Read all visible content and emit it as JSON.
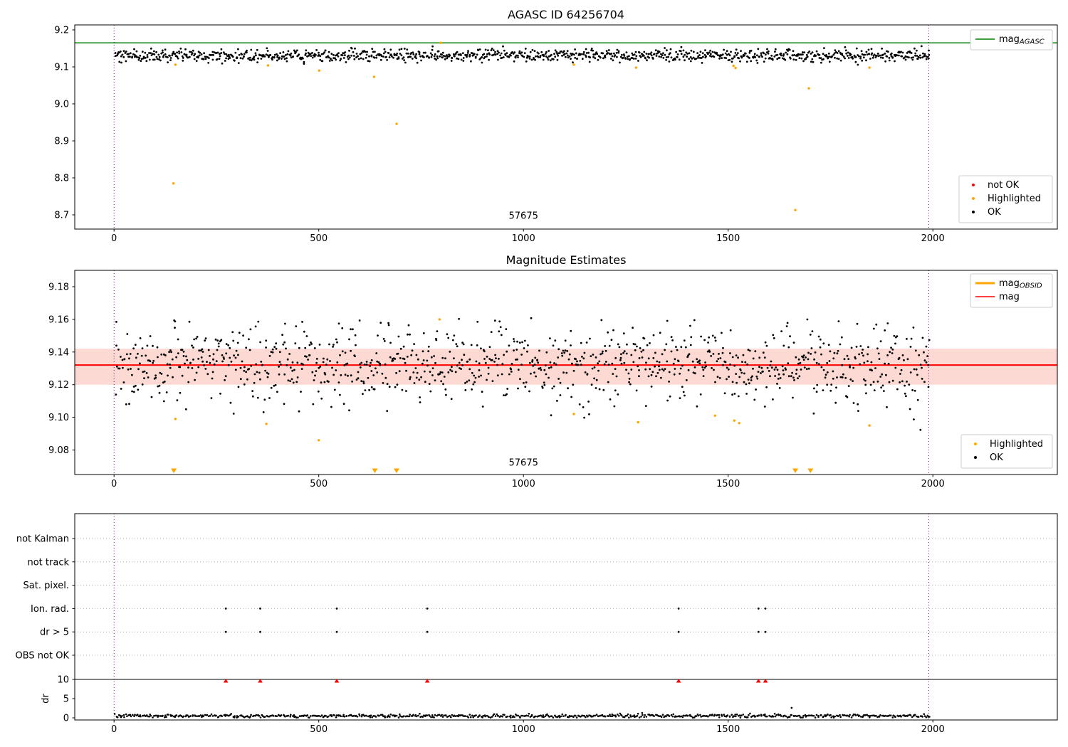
{
  "figure": {
    "background": "#ffffff",
    "colors": {
      "ok": "#000000",
      "not_ok": "#ff0000",
      "highlighted": "#ffa500",
      "agasc_line": "#008000",
      "mag_line": "#ff0000",
      "obsid_line": "#ffa500",
      "band_fill": "#fa8072",
      "vline": "#800080",
      "grid": "#b0b0b0"
    }
  },
  "chart_data": [
    {
      "type": "scatter",
      "title": "AGASC ID 64256704",
      "xlim": [
        -96,
        2304
      ],
      "ylim": [
        8.6615,
        9.2135
      ],
      "xticks": [
        0,
        500,
        1000,
        1500,
        2000
      ],
      "yticks": [
        "9.2",
        "9.1",
        "9.0",
        "8.9",
        "8.8",
        "8.7"
      ],
      "ytick_values": [
        9.2,
        9.1,
        9.0,
        8.9,
        8.8,
        8.7
      ],
      "hline": {
        "value": 9.165,
        "color": "#008000",
        "label": "mag",
        "label_sub": "AGASC"
      },
      "vlines": [
        0,
        1990
      ],
      "annotation": {
        "text": "57675",
        "x": 1000,
        "y": 8.689
      },
      "line_legend": [
        {
          "label": "mag",
          "sub": "AGASC",
          "color": "#008000",
          "type": "line",
          "lw": 1.5
        }
      ],
      "marker_legend": [
        {
          "label": "not OK",
          "color": "#ff0000",
          "type": "dot"
        },
        {
          "label": "Highlighted",
          "color": "#ffa500",
          "type": "dot"
        },
        {
          "label": "OK",
          "color": "#000000",
          "type": "dot"
        }
      ],
      "ok_series": {
        "n": 1100,
        "x_range": [
          3,
          1992
        ],
        "mean": 9.131,
        "sd": 0.0085,
        "dip_prob": 0.008,
        "dip_max": 0.012,
        "clip": [
          9.105,
          9.157
        ],
        "seed": 42
      },
      "highlighted_points": [
        [
          150,
          9.106
        ],
        [
          145,
          8.785
        ],
        [
          376,
          9.104
        ],
        [
          501,
          9.09
        ],
        [
          635,
          9.073
        ],
        [
          690,
          8.946
        ],
        [
          798,
          9.165
        ],
        [
          1123,
          9.106
        ],
        [
          1275,
          9.098
        ],
        [
          1513,
          9.103
        ],
        [
          1518,
          9.097
        ],
        [
          1664,
          8.713
        ],
        [
          1697,
          9.042
        ],
        [
          1845,
          9.098
        ]
      ]
    },
    {
      "type": "scatter",
      "title": "Magnitude Estimates",
      "xlim": [
        -96,
        2304
      ],
      "ylim": [
        9.065,
        9.19
      ],
      "xticks": [
        0,
        500,
        1000,
        1500,
        2000
      ],
      "yticks": [
        "9.18",
        "9.16",
        "9.14",
        "9.12",
        "9.10",
        "9.08"
      ],
      "ytick_values": [
        9.18,
        9.16,
        9.14,
        9.12,
        9.1,
        9.08
      ],
      "band": {
        "lo": 9.12,
        "hi": 9.142
      },
      "mag_line": {
        "value": 9.132,
        "color": "#ff0000"
      },
      "vlines": [
        0,
        1990
      ],
      "annotation": {
        "text": "57675",
        "x": 1000,
        "y": 9.0705
      },
      "line_legend": [
        {
          "label": "mag",
          "sub": "OBSID",
          "color": "#ffa500",
          "type": "line",
          "lw": 3
        },
        {
          "label": "mag",
          "color": "#ff0000",
          "type": "line",
          "lw": 1.5
        }
      ],
      "marker_legend": [
        {
          "label": "Highlighted",
          "color": "#ffa500",
          "type": "dot"
        },
        {
          "label": "OK",
          "color": "#000000",
          "type": "dot"
        }
      ],
      "ok_series": {
        "n": 1100,
        "x_range": [
          3,
          1992
        ],
        "mean": 9.133,
        "sd": 0.011,
        "dip_prob": 0.06,
        "dip_max": 0.027,
        "clip": [
          9.092,
          9.161
        ],
        "seed": 43
      },
      "highlighted_points": [
        [
          150,
          9.099
        ],
        [
          372,
          9.096
        ],
        [
          500,
          9.086
        ],
        [
          795,
          9.16
        ],
        [
          1123,
          9.102
        ],
        [
          1280,
          9.097
        ],
        [
          1468,
          9.101
        ],
        [
          1515,
          9.098
        ],
        [
          1527,
          9.0965
        ],
        [
          1845,
          9.095
        ]
      ],
      "clipped_triangles_x": [
        146,
        637,
        690,
        1664,
        1701
      ]
    },
    {
      "type": "flags",
      "title": "",
      "xlim": [
        -96,
        2304
      ],
      "xticks": [
        0,
        500,
        1000,
        1500,
        2000
      ],
      "vlines": [
        0,
        1990
      ],
      "flag_labels": [
        "not Kalman",
        "not track",
        "Sat. pixel.",
        "Ion. rad.",
        "dr > 5",
        "OBS not OK"
      ],
      "flag_event_rows": [
        "Ion. rad.",
        "dr > 5"
      ],
      "flag_event_x": [
        273,
        357,
        544,
        765,
        1379,
        1574,
        1591
      ],
      "red_marker_x": [
        273,
        357,
        544,
        765,
        1379,
        1574,
        1591
      ],
      "dr_axis_label": "dr",
      "dr_ticks": [
        10,
        5,
        0
      ],
      "dr_threshold_line": 10,
      "ok_series": {
        "n": 700,
        "x_range": [
          3,
          1992
        ],
        "mean": 0.5,
        "sd": 0.22,
        "clip": [
          0.06,
          1.5
        ],
        "seed": 7
      },
      "outlier_points": [
        [
          1655,
          2.6
        ]
      ]
    }
  ]
}
